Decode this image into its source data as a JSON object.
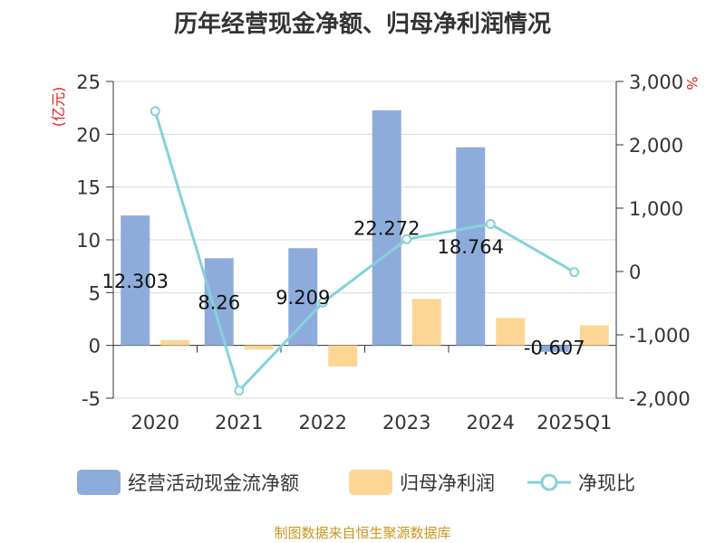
{
  "chart_data": {
    "type": "bar+line",
    "title": "历年经营现金净额、归母净利润情况",
    "categories": [
      "2020",
      "2021",
      "2022",
      "2023",
      "2024",
      "2025Q1"
    ],
    "series": [
      {
        "name": "经营活动现金流净额",
        "type": "bar",
        "axis": "left",
        "color": "#8eacdb",
        "values": [
          12.303,
          8.26,
          9.209,
          22.272,
          18.764,
          -0.607
        ],
        "labels": [
          "12.303",
          "8.26",
          "9.209",
          "22.272",
          "18.764",
          "-0.607"
        ]
      },
      {
        "name": "归母净利润",
        "type": "bar",
        "axis": "left",
        "color": "#fdd696",
        "values": [
          0.5,
          -0.4,
          -2.0,
          4.4,
          2.6,
          1.9
        ]
      },
      {
        "name": "净现比",
        "type": "line",
        "axis": "right",
        "color": "#84d2d8",
        "values": [
          2530,
          -1880,
          -490,
          510,
          750,
          -10
        ]
      }
    ],
    "y_left": {
      "label": "(亿元)",
      "ylim": [
        -5,
        25
      ],
      "ticks": [
        "-5",
        "0",
        "5",
        "10",
        "15",
        "20",
        "25"
      ],
      "tick_values": [
        -5,
        0,
        5,
        10,
        15,
        20,
        25
      ]
    },
    "y_right": {
      "label": "%",
      "ylim": [
        -2000,
        3000
      ],
      "ticks": [
        "-2,000",
        "-1,000",
        "0",
        "1,000",
        "2,000",
        "3,000"
      ],
      "tick_values": [
        -2000,
        -1000,
        0,
        1000,
        2000,
        3000
      ]
    },
    "grid": true,
    "legend_position": "bottom"
  },
  "source_note": "制图数据来自恒生聚源数据库"
}
